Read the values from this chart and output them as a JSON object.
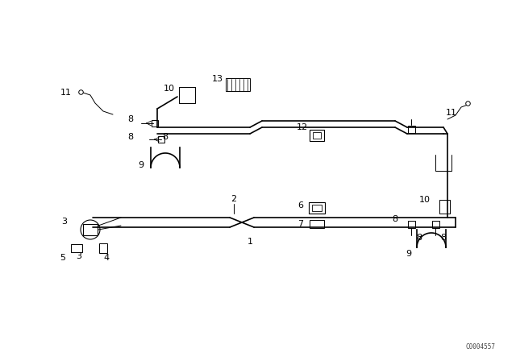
{
  "bg_color": "#ffffff",
  "line_color": "#000000",
  "lw_pipe": 1.2,
  "lw_thin": 0.7,
  "watermark": "C0004557",
  "fig_w": 6.4,
  "fig_h": 4.48,
  "dpi": 100
}
